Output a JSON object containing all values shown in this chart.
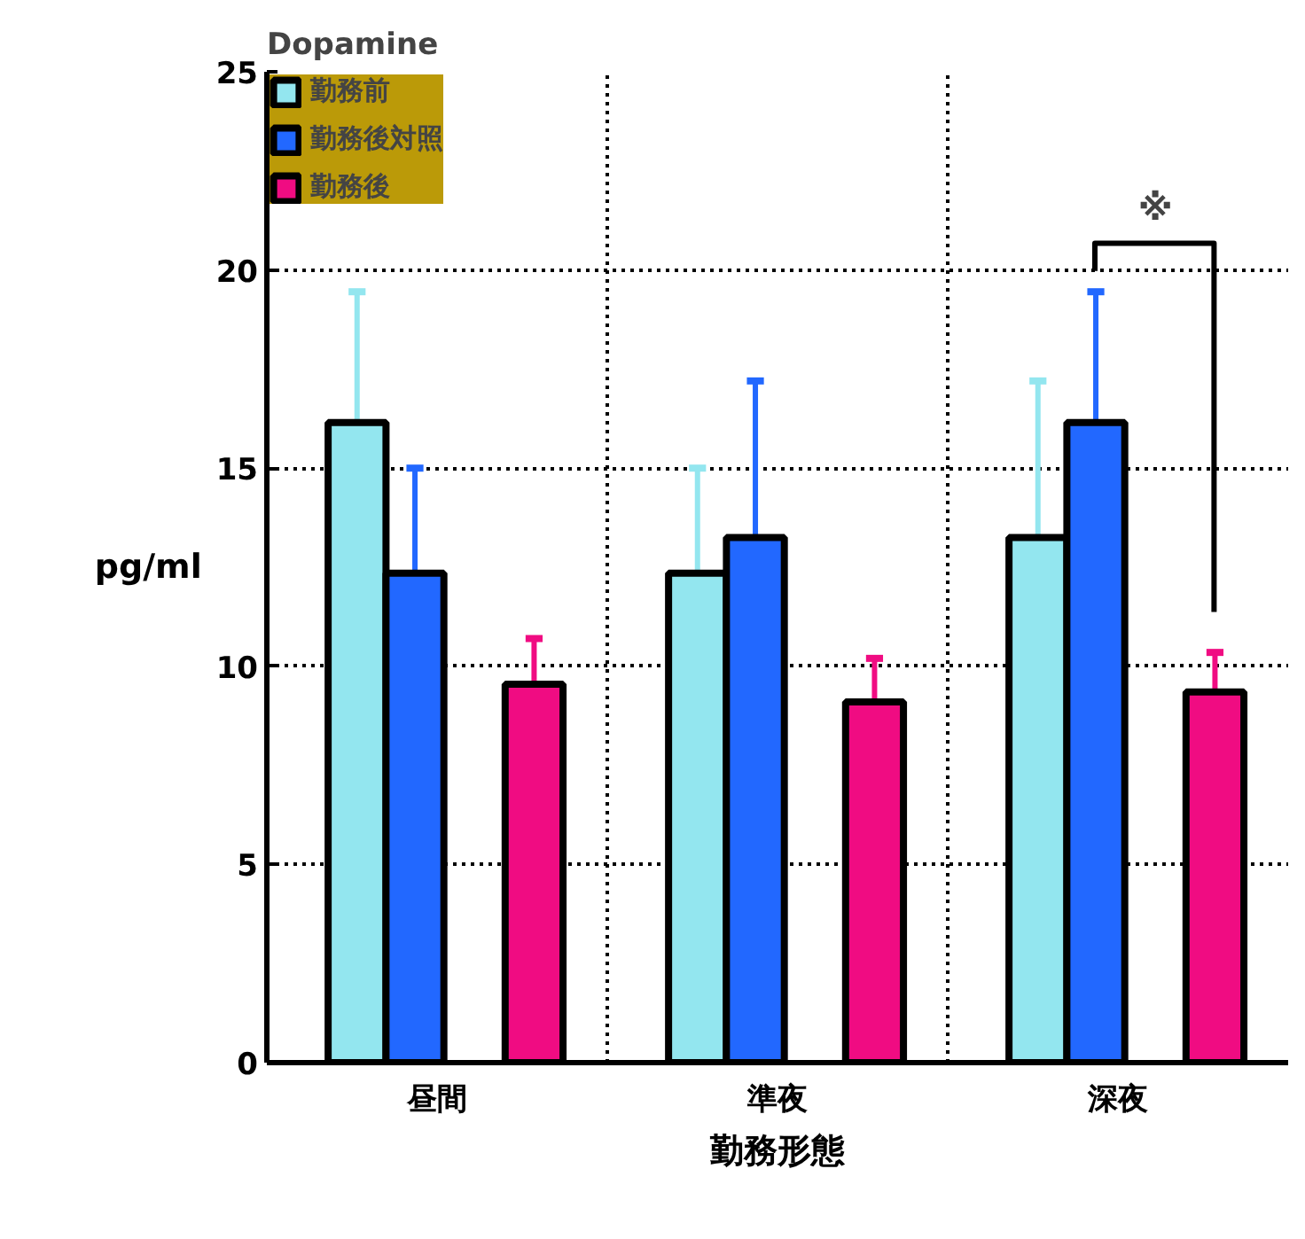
{
  "chart_data": {
    "type": "bar",
    "title": "Dopamine",
    "xlabel": "勤務形態",
    "ylabel": "pg/ml",
    "categories": [
      "昼間",
      "準夜",
      "深夜"
    ],
    "series": [
      {
        "name": "勤務前",
        "color": "#93e6ef",
        "values": [
          16.15,
          12.35,
          13.25
        ],
        "errors": [
          [
            16.15,
            19.45
          ],
          [
            12.35,
            15.0
          ],
          [
            13.25,
            17.2
          ]
        ]
      },
      {
        "name": "勤務後対照",
        "color": "#2268ff",
        "values": [
          12.35,
          13.25,
          16.15
        ],
        "errors": [
          [
            12.35,
            15.0
          ],
          [
            13.25,
            17.2
          ],
          [
            16.15,
            19.45
          ]
        ]
      },
      {
        "name": "勤務後",
        "color": "#f00c82",
        "values": [
          9.55,
          9.1,
          9.35
        ],
        "errors": [
          [
            9.55,
            10.7
          ],
          [
            9.1,
            10.2
          ],
          [
            9.35,
            10.35
          ]
        ]
      }
    ],
    "annotations": [
      "※"
    ],
    "ylim": [
      0,
      25
    ],
    "yticks": [
      0,
      5,
      10,
      15,
      20,
      25
    ],
    "grid": true,
    "legend": "top left"
  }
}
